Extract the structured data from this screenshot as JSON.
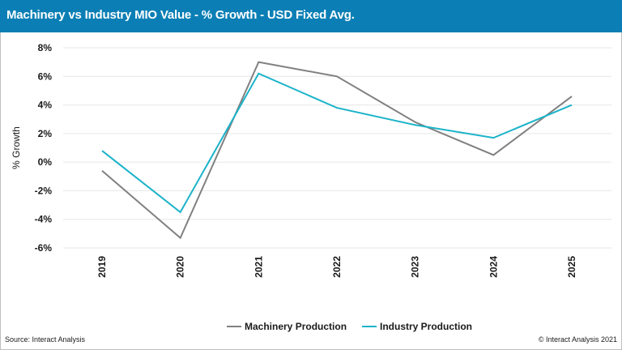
{
  "header": {
    "title": "Machinery vs Industry MIO Value - % Growth - USD Fixed Avg."
  },
  "footer": {
    "source": "Source: Interact Analysis",
    "copyright": "© Interact Analysis 2021"
  },
  "colors": {
    "header_bg": "#0b7fb5",
    "machinery": "#808080",
    "industry": "#1bb3c9",
    "grid": "#e6e6e6"
  },
  "chart_data": {
    "type": "line",
    "title": "Machinery vs Industry MIO Value - % Growth - USD Fixed Avg.",
    "xlabel": "",
    "ylabel": "% Growth",
    "categories": [
      "2019",
      "2020",
      "2021",
      "2022",
      "2023",
      "2024",
      "2025"
    ],
    "ylim": [
      -6,
      8
    ],
    "yticks": [
      -6,
      -4,
      -2,
      0,
      2,
      4,
      6,
      8
    ],
    "ytick_labels": [
      "-6%",
      "-4%",
      "-2%",
      "0%",
      "2%",
      "4%",
      "6%",
      "8%"
    ],
    "grid": true,
    "legend_position": "bottom",
    "series": [
      {
        "name": "Machinery Production",
        "values": [
          -0.6,
          -5.3,
          7.0,
          6.0,
          2.8,
          0.5,
          4.6
        ]
      },
      {
        "name": "Industry Production",
        "values": [
          0.8,
          -3.5,
          6.2,
          3.8,
          2.6,
          1.7,
          4.0
        ]
      }
    ]
  }
}
